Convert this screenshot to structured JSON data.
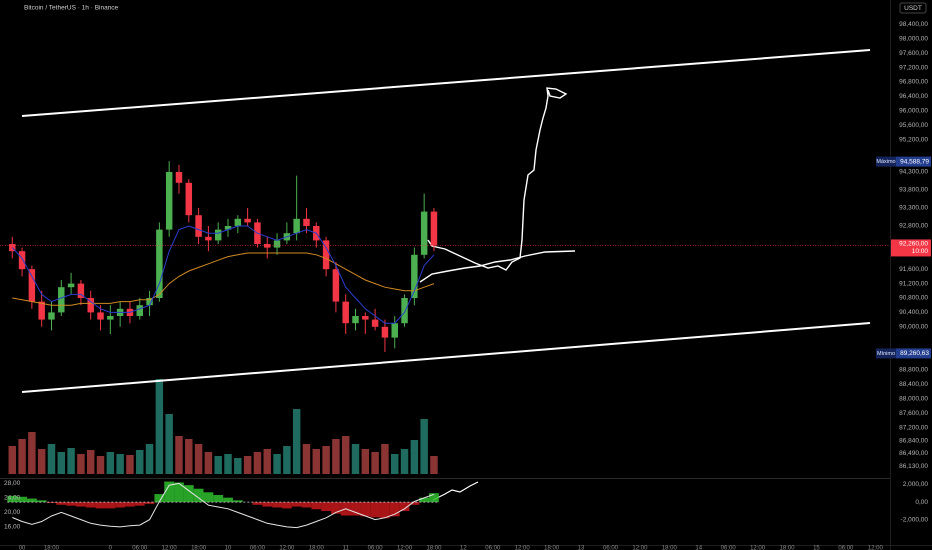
{
  "chart_data": {
    "type": "candlestick",
    "title": "Bitcoin / TetherUS · 1h · Binance",
    "currency": "USDT",
    "x": [
      -20,
      -18,
      -16,
      -14,
      -12,
      -10,
      -8,
      -6,
      -4,
      -2,
      0,
      2,
      4,
      6,
      8,
      10,
      12,
      14,
      16,
      18,
      20,
      22,
      24,
      26,
      28,
      30,
      32,
      34,
      36,
      38,
      40,
      42,
      44,
      46,
      48,
      50,
      52,
      54,
      56,
      58,
      60,
      62,
      64,
      66
    ],
    "open": [
      92300,
      92100,
      91600,
      90700,
      90200,
      90400,
      91100,
      91200,
      90800,
      90400,
      90200,
      90300,
      90500,
      90300,
      90600,
      90800,
      92700,
      94300,
      94000,
      93100,
      92500,
      92400,
      92700,
      92800,
      93000,
      92900,
      92300,
      92200,
      92400,
      92600,
      93000,
      92800,
      92400,
      91600,
      90700,
      90100,
      90300,
      90200,
      90000,
      89700,
      90100,
      90800,
      92000,
      93200
    ],
    "high": [
      92500,
      92200,
      91700,
      91000,
      90700,
      91300,
      91500,
      91300,
      91000,
      90600,
      90600,
      90700,
      90700,
      90800,
      91000,
      92900,
      94600,
      94500,
      94100,
      93300,
      92800,
      92900,
      93000,
      93100,
      93300,
      93000,
      92500,
      92600,
      92900,
      94200,
      93300,
      92900,
      92500,
      91800,
      90900,
      90500,
      90400,
      90500,
      90200,
      90300,
      90900,
      92200,
      93700,
      93300
    ],
    "low": [
      91900,
      91400,
      90500,
      90000,
      89900,
      90300,
      90900,
      90600,
      90200,
      89900,
      89800,
      90000,
      90100,
      90200,
      90300,
      90700,
      92500,
      93700,
      92900,
      92300,
      92100,
      92300,
      92500,
      92600,
      92800,
      92200,
      91900,
      92000,
      92300,
      92400,
      92600,
      92200,
      91400,
      90400,
      89800,
      89900,
      89800,
      89900,
      89300,
      89400,
      90000,
      90600,
      91900,
      92100
    ],
    "close": [
      92100,
      91600,
      90700,
      90200,
      90400,
      91100,
      91200,
      90800,
      90400,
      90200,
      90300,
      90500,
      90300,
      90600,
      90800,
      92700,
      94300,
      94000,
      93100,
      92500,
      92400,
      92700,
      92800,
      93000,
      92900,
      92300,
      92200,
      92400,
      92600,
      93000,
      92800,
      92400,
      91600,
      90700,
      90100,
      90300,
      90200,
      90000,
      89700,
      90100,
      90800,
      92000,
      93200,
      92260
    ],
    "volume": [
      28,
      35,
      42,
      25,
      30,
      22,
      26,
      20,
      24,
      18,
      22,
      20,
      19,
      24,
      30,
      95,
      60,
      38,
      35,
      30,
      22,
      18,
      20,
      16,
      18,
      22,
      25,
      20,
      28,
      65,
      30,
      25,
      28,
      35,
      38,
      30,
      25,
      22,
      30,
      20,
      25,
      34,
      55,
      18
    ],
    "colors": {
      "up": "#4caf50",
      "down": "#f23645",
      "up_volume": "#1f6b5f",
      "down_volume": "#8a3434"
    },
    "ma_fast": {
      "color": "#2b3ed1",
      "values": [
        92200,
        91900,
        91400,
        90900,
        90700,
        90800,
        90900,
        90900,
        90700,
        90500,
        90400,
        90400,
        90400,
        90500,
        90600,
        91200,
        92100,
        92700,
        92800,
        92700,
        92600,
        92600,
        92700,
        92800,
        92800,
        92600,
        92500,
        92400,
        92500,
        92600,
        92700,
        92600,
        92200,
        91700,
        91100,
        90800,
        90500,
        90300,
        90100,
        90100,
        90400,
        91000,
        91700,
        92000
      ]
    },
    "ma_slow": {
      "color": "#d08a22",
      "values": [
        90800,
        90750,
        90700,
        90650,
        90600,
        90600,
        90600,
        90650,
        90650,
        90650,
        90650,
        90700,
        90700,
        90750,
        90750,
        90900,
        91200,
        91400,
        91550,
        91650,
        91750,
        91850,
        91950,
        92000,
        92050,
        92050,
        92050,
        92050,
        92050,
        92050,
        92050,
        92000,
        91900,
        91750,
        91600,
        91450,
        91300,
        91200,
        91100,
        91050,
        91000,
        91000,
        91100,
        91200
      ]
    },
    "xlim": [
      -22.5,
      159
    ],
    "xticks": [
      {
        "value": -18,
        "label": "00"
      },
      {
        "value": -12,
        "label": "18:00"
      },
      0,
      {
        "value": 6,
        "label": "06:00"
      },
      {
        "value": 12,
        "label": "12:00"
      },
      {
        "value": 18,
        "label": "18:00"
      },
      {
        "value": 24,
        "label": "10"
      },
      {
        "value": 30,
        "label": "06:00"
      },
      {
        "value": 36,
        "label": "12:00"
      },
      {
        "value": 42,
        "label": "18:00"
      },
      {
        "value": 48,
        "label": "11"
      },
      {
        "value": 54,
        "label": "06:00"
      },
      {
        "value": 60,
        "label": "12:00"
      },
      {
        "value": 66,
        "label": "18:00"
      },
      {
        "value": 72,
        "label": "12"
      },
      {
        "value": 78,
        "label": "06:00"
      },
      {
        "value": 84,
        "label": "12:00"
      },
      {
        "value": 90,
        "label": "18:00"
      },
      {
        "value": 96,
        "label": "13"
      },
      {
        "value": 102,
        "label": "06:00"
      },
      {
        "value": 108,
        "label": "12:00"
      },
      {
        "value": 114,
        "label": "18:00"
      },
      {
        "value": 120,
        "label": "14"
      },
      {
        "value": 126,
        "label": "06:00"
      },
      {
        "value": 132,
        "label": "12:00"
      },
      {
        "value": 138,
        "label": "18:00"
      },
      {
        "value": 144,
        "label": "15"
      },
      {
        "value": 150,
        "label": "06:00"
      },
      {
        "value": 156,
        "label": "12:00"
      }
    ],
    "ylim": [
      85800,
      98800
    ],
    "yticks": [
      {
        "value": 98400,
        "label": "98,400,00"
      },
      {
        "value": 98000,
        "label": "98,000,00"
      },
      {
        "value": 97600,
        "label": "97,600,00"
      },
      {
        "value": 97200,
        "label": "97,200,00"
      },
      {
        "value": 96800,
        "label": "96,800,00"
      },
      {
        "value": 96400,
        "label": "96,400,00"
      },
      {
        "value": 96000,
        "label": "96,000,00"
      },
      {
        "value": 95600,
        "label": "95,600,00"
      },
      {
        "value": 95200,
        "label": "95,200,00"
      },
      {
        "value": 94300,
        "label": "94,300,00"
      },
      {
        "value": 93800,
        "label": "93,800,00"
      },
      {
        "value": 93300,
        "label": "93,300,00"
      },
      {
        "value": 92800,
        "label": "92,800,00"
      },
      {
        "value": 91600,
        "label": "91,600,00"
      },
      {
        "value": 91200,
        "label": "91,200,00"
      },
      {
        "value": 90800,
        "label": "90,800,00"
      },
      {
        "value": 90400,
        "label": "90,400,00"
      },
      {
        "value": 90000,
        "label": "90,000,00"
      },
      {
        "value": 88800,
        "label": "88,800,00"
      },
      {
        "value": 88400,
        "label": "88,400,00"
      },
      {
        "value": 88000,
        "label": "88,000,00"
      },
      {
        "value": 87600,
        "label": "87,600,00"
      },
      {
        "value": 87200,
        "label": "87,200,00"
      },
      {
        "value": 86840,
        "label": "86,840,00"
      },
      {
        "value": 86490,
        "label": "86,490,00"
      },
      {
        "value": 86130,
        "label": "86,130,00"
      }
    ],
    "last_price": {
      "value": 92260,
      "label": "92,260,00",
      "countdown": "10:00",
      "color": "#f23645"
    },
    "max_marker": {
      "name": "Máximo",
      "value": 94588.79,
      "label": "94,588,79"
    },
    "min_marker": {
      "name": "Mínimo",
      "value": 89260.63,
      "label": "89,260,63"
    },
    "oscillator": {
      "ylim": [
        11,
        29.5
      ],
      "yticks": [
        {
          "value": 28,
          "label": "28,00"
        },
        {
          "value": 24,
          "label": "24,00"
        },
        {
          "value": 20,
          "label": "20,00"
        },
        {
          "value": 16,
          "label": "16,00"
        }
      ],
      "y2lim": [
        -4800,
        2700
      ],
      "y2ticks": [
        {
          "value": 2000,
          "label": "2,000,00"
        },
        {
          "value": 0,
          "label": "0,00"
        },
        {
          "value": -2000,
          "label": "-2,000,00"
        }
      ],
      "histogram": {
        "up_color": "#2fbf2f",
        "down_color": "#c8191b",
        "values": [
          700,
          600,
          400,
          200,
          -100,
          -300,
          -400,
          -500,
          -600,
          -700,
          -700,
          -600,
          -500,
          -400,
          -200,
          900,
          2300,
          2200,
          1900,
          1500,
          1100,
          800,
          500,
          200,
          0,
          -300,
          -500,
          -600,
          -700,
          -500,
          -600,
          -800,
          -1000,
          -1300,
          -1500,
          -1500,
          -1600,
          -1700,
          -1800,
          -1600,
          -1000,
          -300,
          500,
          1000
        ]
      },
      "line": {
        "color": "#e6e6e6",
        "values": [
          18.6,
          17.5,
          16.7,
          17.5,
          19,
          20,
          19,
          18,
          17,
          16.5,
          16.2,
          16,
          16.3,
          16.5,
          18,
          23,
          27.5,
          28,
          26,
          24,
          22,
          21.5,
          21,
          20,
          19,
          18,
          17,
          16.5,
          16,
          15.8,
          16.5,
          17.5,
          18.5,
          20,
          21,
          20,
          19,
          18,
          18.5,
          19.5,
          21,
          23,
          24,
          25
        ]
      }
    }
  }
}
